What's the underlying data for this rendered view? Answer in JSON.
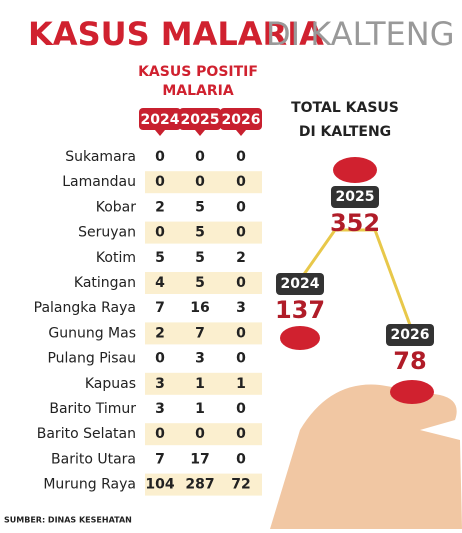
{
  "header": {
    "title": "KASUS MALARIA",
    "title_light": "DI KALTENG"
  },
  "table": {
    "caption": [
      "KASUS POSITIF",
      "MALARIA"
    ],
    "columns": [
      "2024",
      "2025",
      "2026"
    ],
    "rows": [
      [
        "Sukamara",
        0,
        0,
        0
      ],
      [
        "Lamandau",
        0,
        0,
        0
      ],
      [
        "Kobar",
        2,
        5,
        0
      ],
      [
        "Seruyan",
        0,
        5,
        0
      ],
      [
        "Kotim",
        5,
        5,
        2
      ],
      [
        "Katingan",
        4,
        5,
        0
      ],
      [
        "Palangka Raya",
        7,
        16,
        3
      ],
      [
        "Gunung Mas",
        2,
        7,
        0
      ],
      [
        "Pulang Pisau",
        0,
        3,
        0
      ],
      [
        "Kapuas",
        3,
        1,
        1
      ],
      [
        "Barito Timur",
        3,
        1,
        0
      ],
      [
        "Barito Selatan",
        0,
        0,
        0
      ],
      [
        "Barito Utara",
        7,
        17,
        0
      ],
      [
        "Murung Raya",
        104,
        287,
        72
      ]
    ]
  },
  "totals": {
    "title": [
      "TOTAL KASUS",
      "DI KALTENG"
    ],
    "items": [
      {
        "year": "2024",
        "value": 137
      },
      {
        "year": "2025",
        "value": 352
      },
      {
        "year": "2026",
        "value": 78
      }
    ]
  },
  "source": "SUMBER: DINAS KESEHATAN"
}
